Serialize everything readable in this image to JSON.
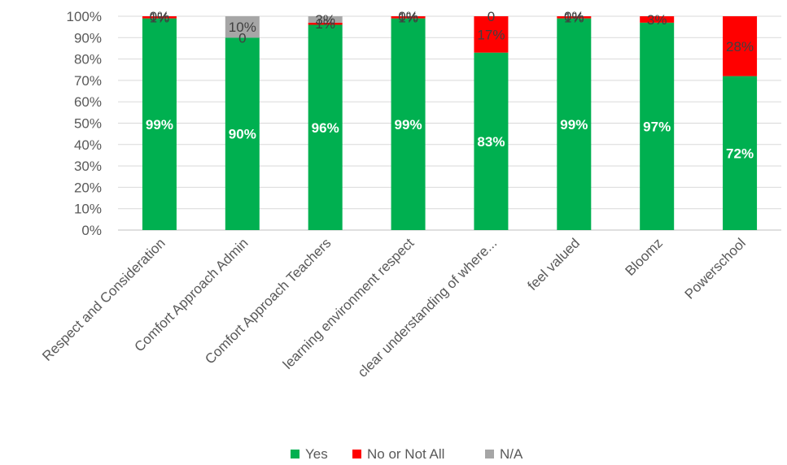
{
  "chart_data": {
    "type": "bar",
    "stacked": true,
    "percent_stacked": true,
    "categories": [
      "Respect and Consideration",
      "Comfort Approach Admin",
      "Comfort Approach Teachers",
      "learning environment respect",
      "clear understanding of where...",
      "feel valued",
      "Bloomz",
      "Powerschool"
    ],
    "series": [
      {
        "name": "Yes",
        "color": "#00b050",
        "values": [
          99,
          90,
          96,
          99,
          83,
          99,
          97,
          72
        ],
        "labels": [
          "99%",
          "90%",
          "96%",
          "99%",
          "83%",
          "99%",
          "97%",
          "72%"
        ]
      },
      {
        "name": "No or Not All",
        "color": "#ff0000",
        "values": [
          1,
          0,
          1,
          1,
          17,
          1,
          3,
          28
        ],
        "labels": [
          "1%",
          "0",
          "1%",
          "1%",
          "17%",
          "1%",
          "3%",
          "28%"
        ]
      },
      {
        "name": "N/A",
        "color": "#a6a6a6",
        "values": [
          0,
          10,
          3,
          0,
          0,
          0,
          0,
          0
        ],
        "labels": [
          "0%",
          "10%",
          "3%",
          "0%",
          "0",
          "0%",
          "",
          ""
        ]
      }
    ],
    "yticks": [
      "0%",
      "10%",
      "20%",
      "30%",
      "40%",
      "50%",
      "60%",
      "70%",
      "80%",
      "90%",
      "100%"
    ],
    "ylim": [
      0,
      100
    ],
    "grid": true,
    "legend_position": "bottom"
  }
}
